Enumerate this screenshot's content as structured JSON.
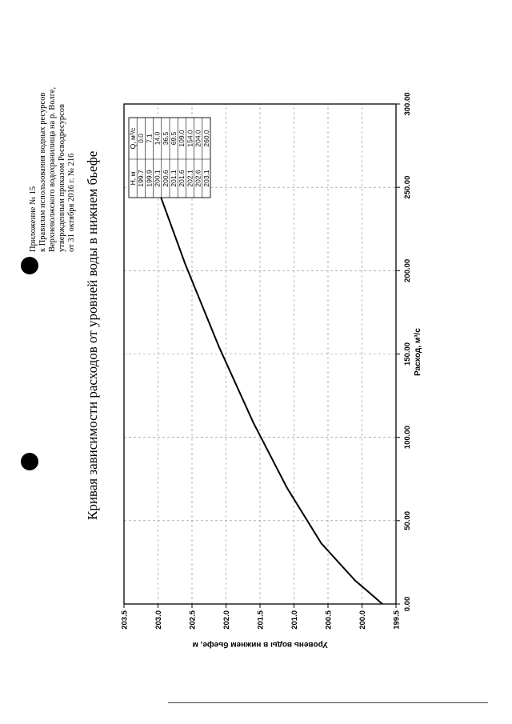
{
  "appendix": {
    "lines": [
      "Приложение № 15",
      "к Правилам использования водных ресурсов",
      "Верхневолжского водохранилища на р. Волге,",
      "утвержденным приказом Росводресурсов",
      "от 31 октября 2016 г. № 216"
    ]
  },
  "chart_data": {
    "type": "line",
    "title": "Кривая зависимости расходов от уровней воды в нижнем бьефе",
    "xlabel": "Расход, м³/с",
    "ylabel": "Уровень воды в нижнем бьефе, м",
    "xlim": [
      0,
      300
    ],
    "ylim": [
      199.5,
      203.5
    ],
    "x_ticks": [
      "0.00",
      "50.00",
      "100.00",
      "150.00",
      "200.00",
      "250.00",
      "300.00"
    ],
    "y_ticks": [
      "199.5",
      "200.0",
      "200.5",
      "201.0",
      "201.5",
      "202.0",
      "202.5",
      "203.0",
      "203.5"
    ],
    "grid": "dashed",
    "series": [
      {
        "x": [
          0.0,
          7.1,
          14.0,
          36.5,
          69.5,
          109.0,
          154.0,
          204.0,
          260.0
        ],
        "y": [
          199.7,
          199.9,
          200.1,
          200.6,
          201.1,
          201.6,
          202.1,
          202.6,
          203.1
        ]
      }
    ],
    "table": {
      "headers": [
        "H, м",
        "Q, м³/с"
      ],
      "rows": [
        [
          "199.7",
          "0.0"
        ],
        [
          "199.9",
          "7.1"
        ],
        [
          "200.1",
          "14.0"
        ],
        [
          "200.6",
          "36.5"
        ],
        [
          "201.1",
          "69.5"
        ],
        [
          "201.6",
          "109.0"
        ],
        [
          "202.1",
          "154.0"
        ],
        [
          "202.6",
          "204.0"
        ],
        [
          "203.1",
          "260.0"
        ]
      ]
    }
  }
}
